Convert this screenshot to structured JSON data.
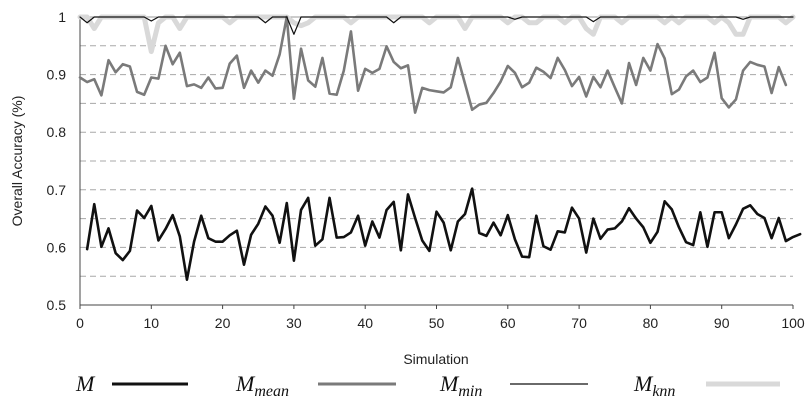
{
  "chart_data": {
    "type": "line",
    "title": "",
    "xlabel": "Simulation",
    "ylabel": "Overall Accuracy (%)",
    "xlim": [
      0,
      100
    ],
    "ylim": [
      0.5,
      1.0
    ],
    "x_ticks": [
      "0",
      "10",
      "20",
      "30",
      "40",
      "50",
      "60",
      "70",
      "80",
      "90",
      "100"
    ],
    "y_ticks": [
      "0.5",
      "0.6",
      "0.7",
      "0.8",
      "0.9",
      "1"
    ],
    "grid": "horizontal dashed",
    "legend_placement": "bottom",
    "series": [
      {
        "name": "M",
        "legend_base": "M",
        "legend_sub": "",
        "color": "#111111",
        "x_start": 1,
        "values": [
          0.597,
          0.675,
          0.601,
          0.633,
          0.59,
          0.578,
          0.594,
          0.664,
          0.651,
          0.672,
          0.612,
          0.632,
          0.656,
          0.619,
          0.544,
          0.61,
          0.655,
          0.616,
          0.61,
          0.61,
          0.621,
          0.629,
          0.57,
          0.622,
          0.641,
          0.671,
          0.655,
          0.608,
          0.677,
          0.577,
          0.665,
          0.686,
          0.603,
          0.614,
          0.686,
          0.617,
          0.618,
          0.626,
          0.655,
          0.603,
          0.645,
          0.617,
          0.665,
          0.679,
          0.595,
          0.692,
          0.651,
          0.612,
          0.594,
          0.662,
          0.643,
          0.595,
          0.645,
          0.658,
          0.702,
          0.625,
          0.62,
          0.643,
          0.621,
          0.656,
          0.614,
          0.584,
          0.583,
          0.655,
          0.602,
          0.596,
          0.628,
          0.626,
          0.669,
          0.65,
          0.591,
          0.65,
          0.615,
          0.631,
          0.633,
          0.645,
          0.668,
          0.65,
          0.635,
          0.608,
          0.627,
          0.68,
          0.666,
          0.635,
          0.609,
          0.604,
          0.661,
          0.601,
          0.661,
          0.661,
          0.616,
          0.64,
          0.667,
          0.673,
          0.658,
          0.651,
          0.616,
          0.651,
          0.611,
          0.618,
          0.623
        ]
      },
      {
        "name": "Mmean",
        "legend_base": "M",
        "legend_sub": "mean",
        "color": "#7a7a7a",
        "x_start": 0,
        "values": [
          0.895,
          0.887,
          0.892,
          0.864,
          0.925,
          0.904,
          0.918,
          0.914,
          0.87,
          0.865,
          0.895,
          0.893,
          0.95,
          0.918,
          0.938,
          0.88,
          0.883,
          0.877,
          0.895,
          0.876,
          0.877,
          0.919,
          0.933,
          0.877,
          0.907,
          0.886,
          0.907,
          0.898,
          0.935,
          1.0,
          0.858,
          0.945,
          0.89,
          0.879,
          0.929,
          0.867,
          0.865,
          0.907,
          0.975,
          0.872,
          0.91,
          0.903,
          0.91,
          0.949,
          0.922,
          0.911,
          0.916,
          0.834,
          0.877,
          0.873,
          0.871,
          0.869,
          0.878,
          0.929,
          0.884,
          0.839,
          0.848,
          0.851,
          0.868,
          0.888,
          0.915,
          0.903,
          0.878,
          0.886,
          0.912,
          0.905,
          0.894,
          0.929,
          0.908,
          0.88,
          0.896,
          0.862,
          0.896,
          0.878,
          0.907,
          0.878,
          0.85,
          0.92,
          0.882,
          0.929,
          0.907,
          0.953,
          0.928,
          0.866,
          0.874,
          0.897,
          0.907,
          0.887,
          0.895,
          0.938,
          0.859,
          0.843,
          0.857,
          0.907,
          0.922,
          0.917,
          0.914,
          0.868,
          0.913,
          0.882
        ]
      },
      {
        "name": "Mmin",
        "legend_base": "M",
        "legend_sub": "min",
        "color": "#111111",
        "x_start": 0,
        "values": [
          1,
          0.99,
          1,
          1,
          1,
          1,
          1,
          1,
          1,
          1,
          0.993,
          1,
          1,
          1,
          1,
          1,
          1,
          1,
          1,
          1,
          1,
          1,
          1,
          1,
          1,
          1,
          0.99,
          1,
          1,
          1,
          0.97,
          1,
          1,
          1,
          1,
          1,
          1,
          1,
          1,
          1,
          1,
          1,
          1,
          1,
          0.99,
          1,
          1,
          1,
          1,
          1,
          1,
          1,
          1,
          1,
          1,
          1,
          1,
          1,
          1,
          1,
          1,
          0.996,
          1,
          1,
          1,
          1,
          1,
          1,
          1,
          1,
          1,
          1,
          0.992,
          1,
          1,
          1,
          1,
          1,
          1,
          1,
          1,
          1,
          1,
          1,
          1,
          1,
          1,
          1,
          1,
          1,
          1,
          1,
          1,
          0.996,
          1,
          1,
          1,
          1,
          1,
          1,
          1
        ]
      },
      {
        "name": "Mknn",
        "legend_base": "M",
        "legend_sub": "knn",
        "color": "#d9d9d9",
        "x_start": 0,
        "values": [
          1,
          1,
          0.98,
          1,
          1,
          1,
          1,
          1,
          1,
          1,
          0.94,
          0.99,
          1,
          1,
          0.98,
          1,
          1,
          1,
          1,
          1,
          1,
          0.99,
          1,
          1,
          1,
          1,
          1,
          1,
          1,
          1,
          0.99,
          0.985,
          0.99,
          1,
          1,
          1,
          1,
          1,
          0.99,
          1,
          1,
          1,
          1,
          1,
          1,
          1,
          1,
          1,
          1,
          0.99,
          1,
          1,
          1,
          1,
          0.98,
          1,
          1,
          1,
          1,
          1,
          0.99,
          1,
          1,
          0.99,
          0.99,
          1,
          1,
          1,
          0.99,
          1,
          1,
          0.98,
          0.97,
          1,
          1,
          1,
          0.99,
          1,
          1,
          1,
          1,
          1,
          0.99,
          1,
          0.99,
          1,
          1,
          1,
          1,
          0.99,
          1,
          0.99,
          0.97,
          0.97,
          1,
          1,
          1,
          1,
          1,
          0.99,
          1
        ]
      }
    ]
  }
}
